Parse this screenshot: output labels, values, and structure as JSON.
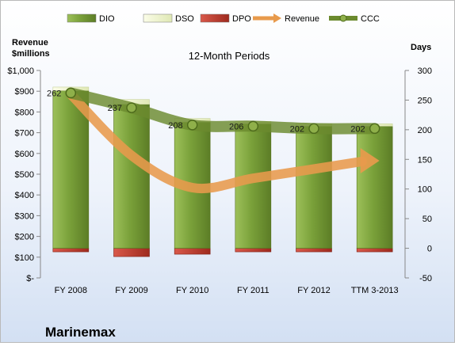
{
  "chart_data": {
    "type": "bar",
    "title": "12-Month Periods",
    "company": "Marinemax",
    "left_axis": {
      "label_line1": "Revenue",
      "label_line2": "$millions",
      "range": [
        0,
        1000
      ],
      "ticks": [
        "$-",
        "$100",
        "$200",
        "$300",
        "$400",
        "$500",
        "$600",
        "$700",
        "$800",
        "$900",
        "$1,000"
      ]
    },
    "right_axis": {
      "label": "Days",
      "range": [
        -50,
        300
      ],
      "ticks": [
        "-50",
        "0",
        "50",
        "100",
        "150",
        "200",
        "250",
        "300"
      ]
    },
    "categories": [
      "FY 2008",
      "FY 2009",
      "FY 2010",
      "FY 2011",
      "FY 2012",
      "TTM 3-2013"
    ],
    "legend": {
      "position": "top",
      "entries": [
        {
          "name": "DIO",
          "color": "#7aa13a"
        },
        {
          "name": "DSO",
          "color": "#eef4cf"
        },
        {
          "name": "DPO",
          "color": "#c0392b"
        },
        {
          "name": "Revenue",
          "color": "#e89a4c"
        },
        {
          "name": "CCC",
          "color": "#6b8a2e"
        }
      ]
    },
    "series": [
      {
        "name": "DIO",
        "axis": "right",
        "values": [
          266,
          243,
          213,
          210,
          206,
          206
        ]
      },
      {
        "name": "DSO",
        "axis": "right",
        "values": [
          6,
          8,
          6,
          4,
          4,
          4
        ]
      },
      {
        "name": "DPO",
        "axis": "right",
        "values": [
          -6,
          -14,
          -10,
          -6,
          -6,
          -6
        ]
      },
      {
        "name": "Revenue",
        "axis": "left",
        "values": [
          885,
          590,
          435,
          480,
          525,
          565
        ]
      },
      {
        "name": "CCC",
        "axis": "right",
        "values": [
          262,
          237,
          208,
          206,
          202,
          202
        ]
      }
    ],
    "ccc_labels": [
      "262",
      "237",
      "208",
      "206",
      "202",
      "202"
    ],
    "colors": {
      "dio": "#7aa13a",
      "dso": "#eef4cf",
      "dpo": "#c0392b",
      "revenue": "#e89a4c",
      "ccc": "#6b8a2e"
    }
  }
}
